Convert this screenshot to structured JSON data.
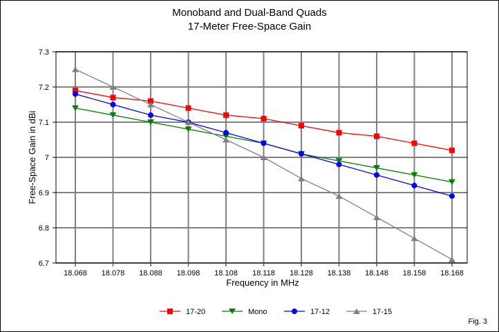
{
  "chart_data": {
    "type": "line",
    "title": "Monoband and Dual-Band Quads",
    "subtitle": "17-Meter Free-Space Gain",
    "xlabel": "Frequency in MHz",
    "ylabel": "Free-Space Gain in dBi",
    "x": [
      "18.068",
      "18.078",
      "18.088",
      "18.098",
      "18.108",
      "18.118",
      "18.128",
      "18.138",
      "18.148",
      "18.158",
      "18.168"
    ],
    "ylim": [
      6.7,
      7.3
    ],
    "yticks": [
      "6.7",
      "6.8",
      "6.9",
      "7",
      "7.1",
      "7.2",
      "7.3"
    ],
    "grid": true,
    "legend_position": "bottom",
    "series": [
      {
        "name": "17-20",
        "color": "#ff0000",
        "marker": "square",
        "values": [
          7.19,
          7.17,
          7.16,
          7.14,
          7.12,
          7.11,
          7.09,
          7.07,
          7.06,
          7.04,
          7.02
        ]
      },
      {
        "name": "Mono",
        "color": "#008000",
        "marker": "triangle-down",
        "values": [
          7.14,
          7.12,
          7.1,
          7.08,
          7.06,
          7.04,
          7.01,
          6.99,
          6.97,
          6.95,
          6.93
        ]
      },
      {
        "name": "17-12",
        "color": "#0000ff",
        "marker": "circle",
        "values": [
          7.18,
          7.15,
          7.12,
          7.1,
          7.07,
          7.04,
          7.01,
          6.98,
          6.95,
          6.92,
          6.89
        ]
      },
      {
        "name": "17-15",
        "color": "#808080",
        "marker": "triangle-up",
        "values": [
          7.25,
          7.2,
          7.15,
          7.1,
          7.05,
          7.0,
          6.94,
          6.89,
          6.83,
          6.77,
          6.71
        ]
      }
    ],
    "annotation": "Fig. 3"
  }
}
